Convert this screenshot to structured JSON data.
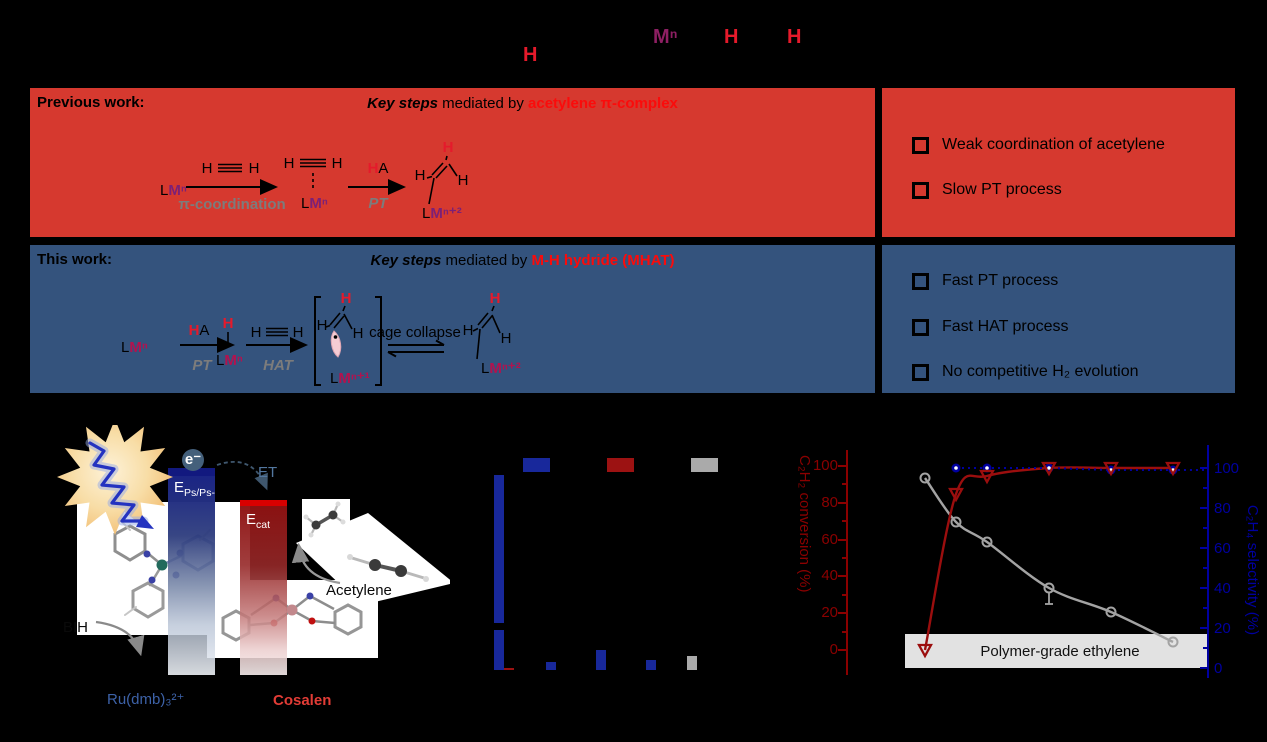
{
  "header": {
    "h1": "H",
    "m": "Mⁿ",
    "h2": "H",
    "h3": "H"
  },
  "panel_prev": {
    "label": "Previous work:",
    "title": {
      "bold": "Key steps",
      "mid": " mediated by ",
      "accent": "acetylene π-complex"
    },
    "scheme": {
      "l1": "L",
      "m1": "Mⁿ",
      "ac_h1": "H",
      "ac_h2": "H",
      "step1": "π-coordination",
      "cx_h1": "H",
      "cx_h2": "H",
      "l2": "L",
      "m2": "Mⁿ",
      "ha_h": "H",
      "ha_a": "A",
      "step2": "PT",
      "p_htop": "H",
      "p_hl": "H",
      "p_hr": "H",
      "l3": "L",
      "m3": "Mⁿ⁺²"
    }
  },
  "points_prev": {
    "item1": "Weak coordination of acetylene",
    "item2": "Slow PT process"
  },
  "panel_this": {
    "label": "This work:",
    "title": {
      "bold": "Key steps",
      "mid": " mediated by ",
      "accent": "M-H hydride (MHAT)"
    },
    "scheme": {
      "l1": "L",
      "m1": "Mⁿ",
      "ha_h": "H",
      "ha_a": "A",
      "step1": "PT",
      "hy_h": "H",
      "l2": "L",
      "m2": "Mⁿ",
      "ac_h1": "H",
      "ac_h2": "H",
      "step2": "HAT",
      "cg_htop": "H",
      "cg_hl": "H",
      "cg_hr": "H",
      "l3": "L",
      "m3": "Mⁿ⁺¹",
      "step3": "cage collapse",
      "p_htop": "H",
      "p_hl": "H",
      "p_hr": "H",
      "l4": "L",
      "m4": "Mⁿ⁺²"
    }
  },
  "points_this": {
    "item1": "Fast PT process",
    "item2": "Fast HAT process",
    "item3": "No competitive H₂ evolution"
  },
  "energy": {
    "electron": "e⁻",
    "et": "ET",
    "eps_base": "E",
    "eps_sub": "Ps/Ps-",
    "ecat_base": "E",
    "ecat_sub": "cat",
    "bih": "BIH",
    "acetylene": "Acetylene",
    "ru": "Ru(dmb)₃²⁺",
    "cosalen": "Cosalen"
  },
  "chart_data": [
    {
      "type": "bar",
      "right_axis": {
        "label": "C₂H₂ conversion (%)",
        "ticks": [
          0,
          20,
          40,
          60,
          80,
          100
        ],
        "color": "#8b0000"
      },
      "legend": [
        {
          "color": "#18289b"
        },
        {
          "color": "#9c1212"
        },
        {
          "color": "#aaaaaa"
        }
      ],
      "axis_break": true,
      "bars": [
        {
          "group": 1,
          "slot": 0,
          "color": "#18289b",
          "value": 99,
          "broken_axis": true
        },
        {
          "group": 1,
          "slot": 1,
          "color": "#9c1212",
          "value": 0.5
        },
        {
          "group": 2,
          "slot": 0,
          "color": "#18289b",
          "value": 2
        },
        {
          "group": 3,
          "slot": 0,
          "color": "#18289b",
          "value": 5
        },
        {
          "group": 4,
          "slot": 0,
          "color": "#18289b",
          "value": 2.5
        },
        {
          "group": 5,
          "slot": 0,
          "color": "#aaaaaa",
          "value": 3.5
        }
      ]
    },
    {
      "type": "line",
      "x": [
        1,
        2,
        3,
        5,
        7,
        9
      ],
      "series": [
        {
          "name": "red-triangle-series",
          "color": "#9b0e0e",
          "marker": "triangle-down",
          "values": [
            9,
            87,
            96,
            100,
            100,
            100
          ]
        },
        {
          "name": "blue-circle-series",
          "color": "#0000a0",
          "marker": "circle",
          "line": "dotted",
          "values": [
            null,
            100,
            100,
            100,
            99,
            99
          ]
        },
        {
          "name": "gray-circle-series",
          "color": "#a3a3a3",
          "marker": "open-circle",
          "values": [
            95,
            73,
            63,
            40,
            28,
            13
          ],
          "error_bar_index": 3
        }
      ],
      "right_axis": {
        "label": "C₂H₄ selectivity (%)",
        "ticks": [
          0,
          20,
          40,
          60,
          80,
          100
        ],
        "color": "#0000a0"
      },
      "band": {
        "label": "Polymer-grade ethylene",
        "range": [
          0,
          17
        ],
        "color": "#e2e2e2"
      },
      "xlim": [
        0.3,
        10.2
      ],
      "ylim": [
        0,
        105
      ]
    }
  ],
  "colors": {
    "panel_red": "#d6392f",
    "panel_blue": "#34537d",
    "accent_red": "#fb0b0b",
    "h_red": "#e51a2b",
    "m_purple": "#7c2077",
    "m_crimson": "#b3124e",
    "step_gray": "#7c7c7c"
  }
}
